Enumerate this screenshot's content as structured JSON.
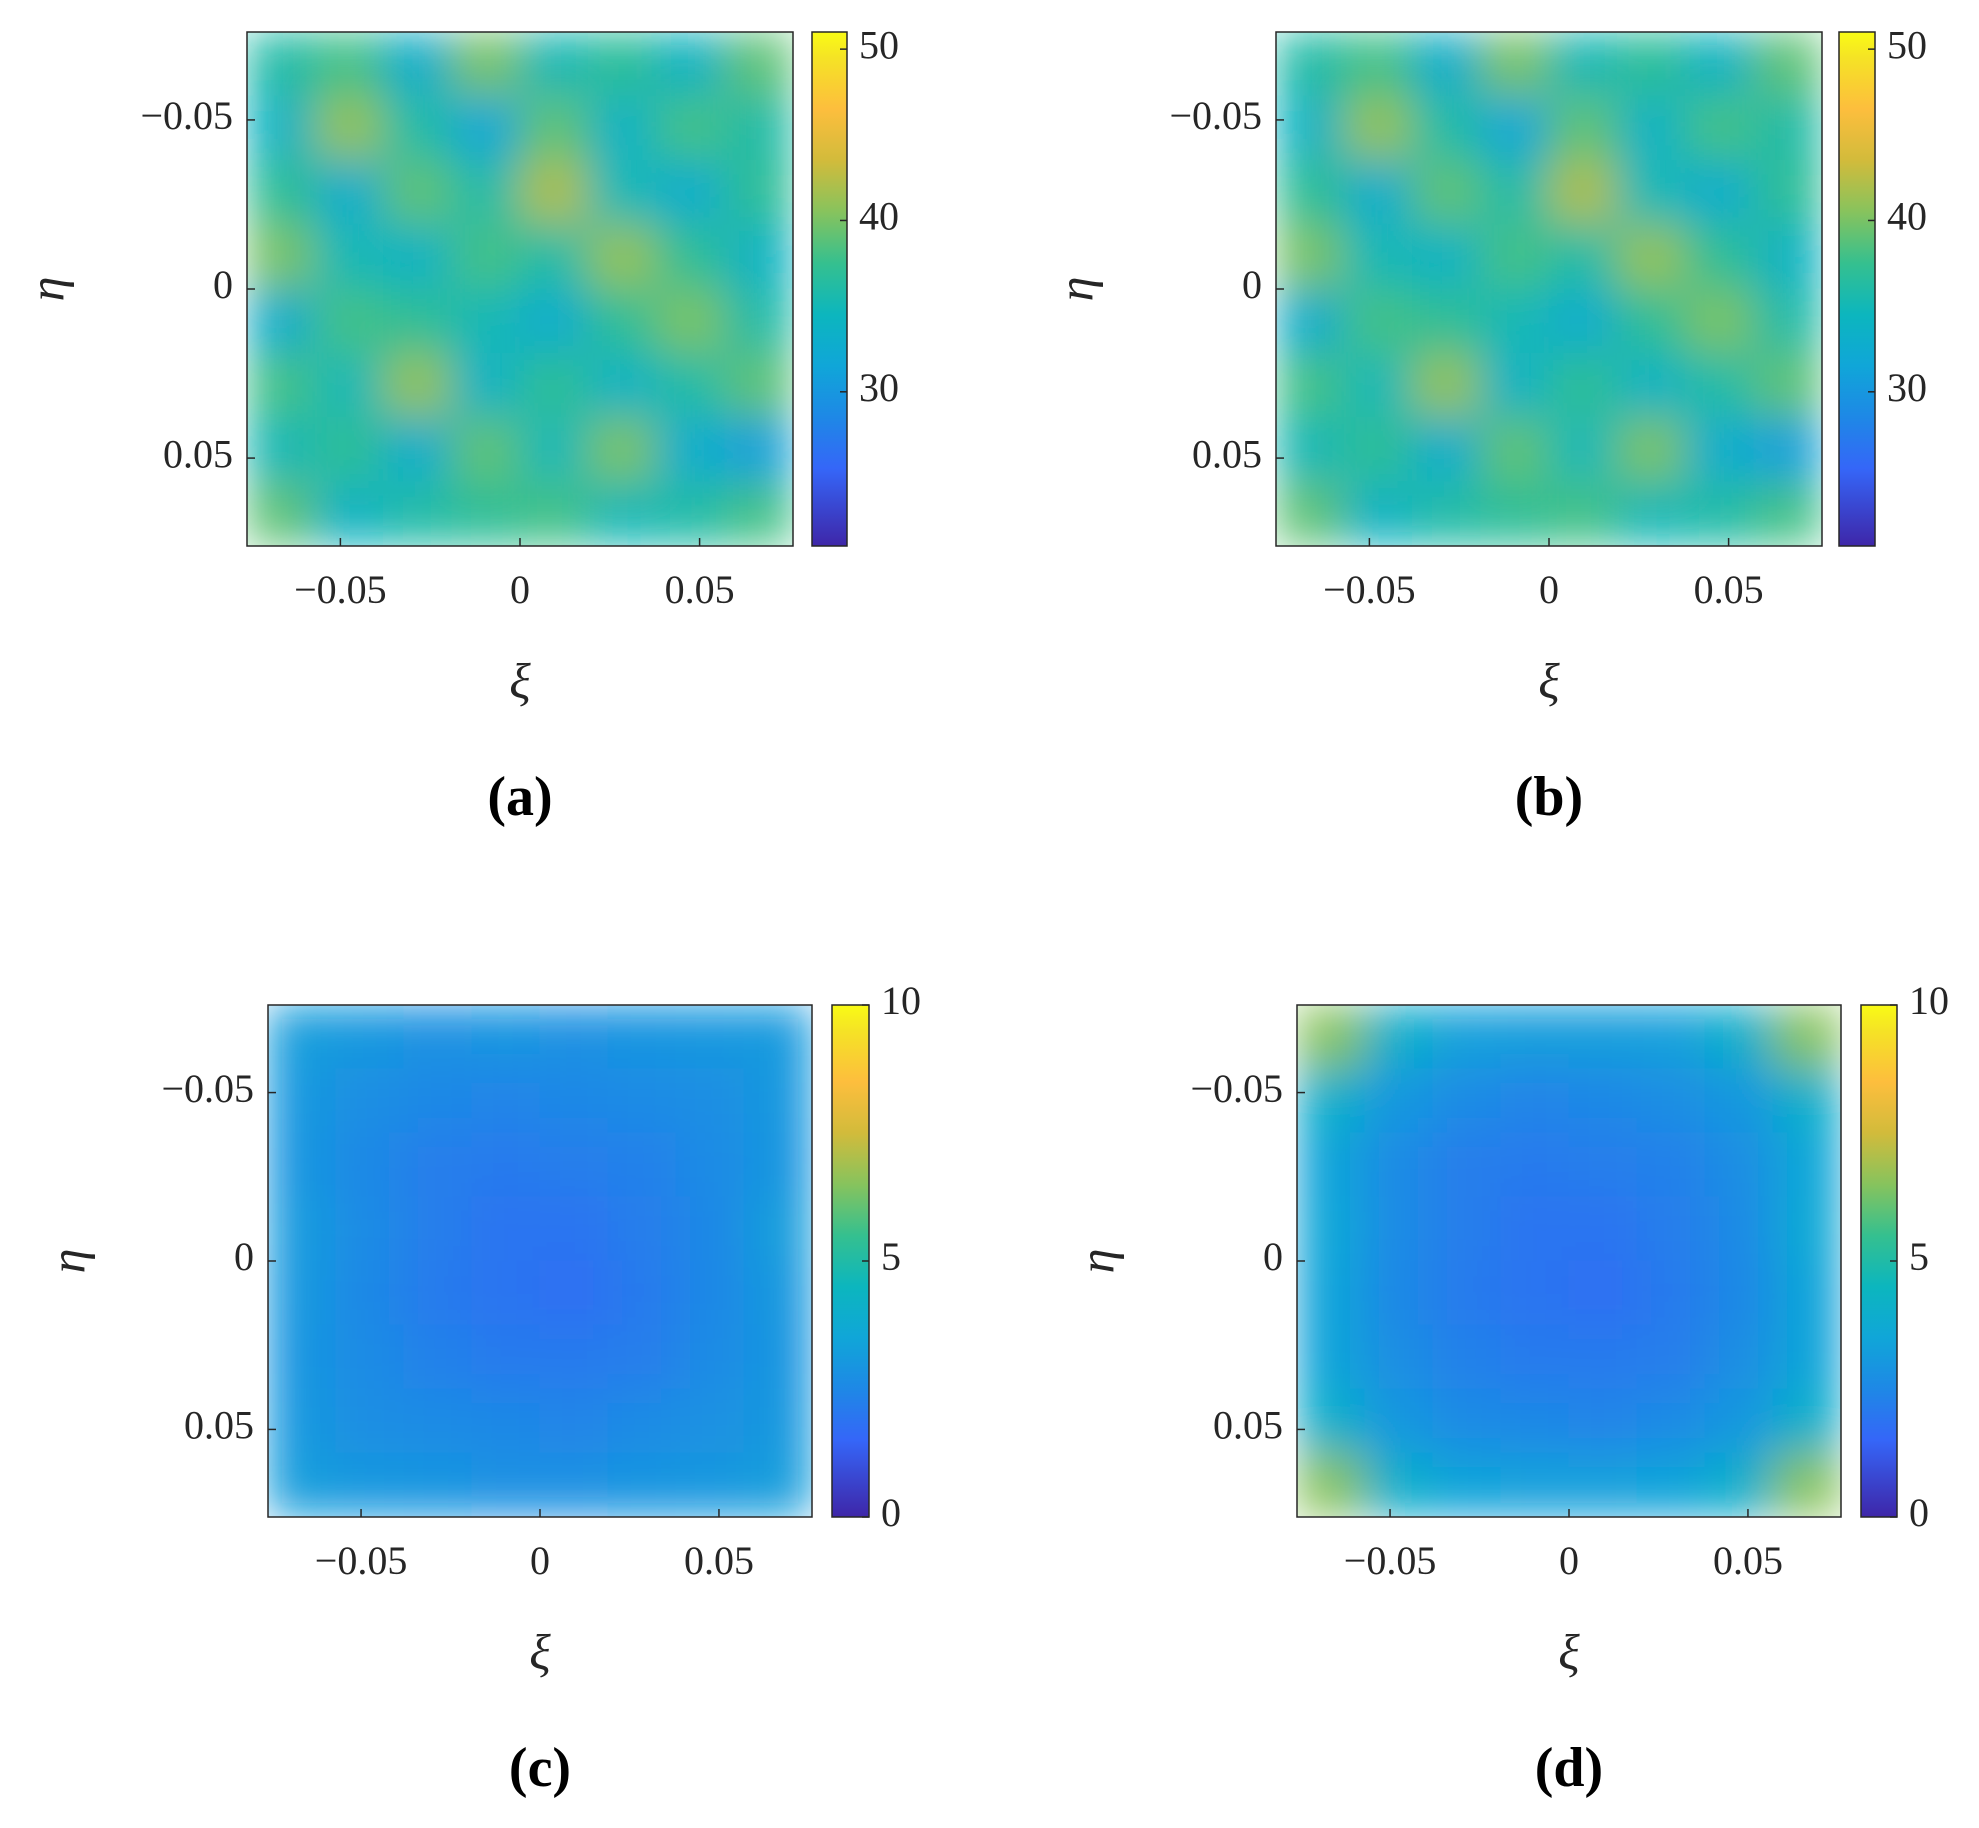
{
  "chart_data": [
    {
      "type": "heatmap",
      "title": "(a)",
      "xlabel": "ξ",
      "ylabel": "η",
      "colormap": "parula",
      "xlim": [
        -0.076,
        0.076
      ],
      "ylim": [
        -0.076,
        0.076
      ],
      "y_reversed": true,
      "xticks": [
        {
          "value": -0.05,
          "label": "−0.05"
        },
        0,
        0.05
      ],
      "yticks": [
        {
          "value": -0.05,
          "label": "−0.05"
        },
        0,
        0.05
      ],
      "clim": [
        21,
        51
      ],
      "cticks": [
        30,
        40,
        50
      ],
      "z": [
        [
          36,
          38,
          33,
          40,
          35,
          37,
          34,
          39
        ],
        [
          34,
          41,
          36,
          32,
          39,
          34,
          38,
          36
        ],
        [
          37,
          33,
          39,
          36,
          42,
          35,
          33,
          37
        ],
        [
          40,
          35,
          34,
          38,
          36,
          41,
          37,
          34
        ],
        [
          33,
          38,
          37,
          35,
          33,
          37,
          40,
          36
        ],
        [
          38,
          35,
          41,
          34,
          37,
          34,
          36,
          39
        ],
        [
          35,
          37,
          33,
          39,
          35,
          40,
          33,
          31
        ],
        [
          39,
          34,
          36,
          37,
          38,
          35,
          36,
          38
        ]
      ]
    },
    {
      "type": "heatmap",
      "title": "(b)",
      "xlabel": "ξ",
      "ylabel": "η",
      "colormap": "parula",
      "xlim": [
        -0.076,
        0.076
      ],
      "ylim": [
        -0.076,
        0.076
      ],
      "y_reversed": true,
      "xticks": [
        {
          "value": -0.05,
          "label": "−0.05"
        },
        0,
        0.05
      ],
      "yticks": [
        {
          "value": -0.05,
          "label": "−0.05"
        },
        0,
        0.05
      ],
      "clim": [
        21,
        51
      ],
      "cticks": [
        30,
        40,
        50
      ],
      "z": [
        [
          36,
          38,
          33,
          40,
          35,
          37,
          34,
          39
        ],
        [
          34,
          41,
          36,
          32,
          39,
          34,
          38,
          36
        ],
        [
          37,
          33,
          39,
          36,
          42,
          35,
          33,
          37
        ],
        [
          40,
          35,
          34,
          38,
          36,
          41,
          37,
          34
        ],
        [
          33,
          38,
          37,
          35,
          33,
          37,
          40,
          36
        ],
        [
          38,
          35,
          41,
          34,
          37,
          34,
          36,
          39
        ],
        [
          35,
          37,
          33,
          39,
          35,
          40,
          33,
          31
        ],
        [
          39,
          34,
          36,
          37,
          38,
          35,
          36,
          38
        ]
      ]
    },
    {
      "type": "heatmap",
      "title": "(c)",
      "xlabel": "ξ",
      "ylabel": "η",
      "colormap": "parula",
      "xlim": [
        -0.076,
        0.076
      ],
      "ylim": [
        -0.076,
        0.076
      ],
      "y_reversed": true,
      "xticks": [
        {
          "value": -0.05,
          "label": "−0.05"
        },
        0,
        0.05
      ],
      "yticks": [
        {
          "value": -0.05,
          "label": "−0.05"
        },
        0,
        0.05
      ],
      "clim": [
        0,
        10
      ],
      "cticks": [
        0,
        5,
        10
      ],
      "z": [
        [
          3.2,
          3.0,
          2.8,
          2.9,
          2.8,
          2.9,
          3.0,
          3.1
        ],
        [
          3.0,
          2.7,
          2.5,
          2.4,
          2.5,
          2.6,
          2.7,
          3.0
        ],
        [
          2.9,
          2.5,
          2.2,
          2.1,
          2.2,
          2.3,
          2.6,
          2.9
        ],
        [
          3.1,
          2.6,
          2.2,
          1.9,
          1.9,
          2.2,
          2.5,
          3.2
        ],
        [
          3.0,
          2.5,
          2.1,
          1.9,
          1.8,
          2.1,
          2.5,
          3.0
        ],
        [
          2.9,
          2.6,
          2.3,
          2.1,
          2.1,
          2.2,
          2.6,
          2.9
        ],
        [
          3.0,
          2.7,
          2.6,
          2.5,
          2.4,
          2.6,
          2.8,
          3.0
        ],
        [
          3.2,
          3.0,
          2.9,
          2.8,
          2.8,
          2.9,
          3.0,
          3.2
        ]
      ]
    },
    {
      "type": "heatmap",
      "title": "(d)",
      "xlabel": "ξ",
      "ylabel": "η",
      "colormap": "parula",
      "xlim": [
        -0.076,
        0.076
      ],
      "ylim": [
        -0.076,
        0.076
      ],
      "y_reversed": true,
      "xticks": [
        {
          "value": -0.05,
          "label": "−0.05"
        },
        0,
        0.05
      ],
      "yticks": [
        {
          "value": -0.05,
          "label": "−0.05"
        },
        0,
        0.05
      ],
      "clim": [
        0,
        10
      ],
      "cticks": [
        0,
        5,
        10
      ],
      "z": [
        [
          6.5,
          4.0,
          3.3,
          3.2,
          3.2,
          3.3,
          4.0,
          6.5
        ],
        [
          4.0,
          3.0,
          2.6,
          2.4,
          2.5,
          2.7,
          3.0,
          4.0
        ],
        [
          3.4,
          2.6,
          2.2,
          2.1,
          2.2,
          2.3,
          2.7,
          3.5
        ],
        [
          3.5,
          2.6,
          2.2,
          1.9,
          1.9,
          2.2,
          2.6,
          3.6
        ],
        [
          3.4,
          2.5,
          2.1,
          1.9,
          1.8,
          2.1,
          2.5,
          3.4
        ],
        [
          3.4,
          2.7,
          2.3,
          2.1,
          2.1,
          2.2,
          2.7,
          3.4
        ],
        [
          4.0,
          3.0,
          2.6,
          2.5,
          2.4,
          2.6,
          3.0,
          4.0
        ],
        [
          6.5,
          4.0,
          3.4,
          3.3,
          3.3,
          3.4,
          4.0,
          6.5
        ]
      ]
    }
  ]
}
